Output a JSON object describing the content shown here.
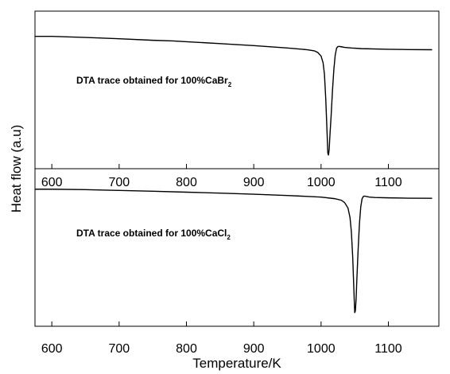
{
  "chart_data": [
    {
      "type": "line",
      "panel": "top",
      "xlabel": "",
      "ylabel": "Heat flow (a.u)",
      "xlim": [
        575,
        1175
      ],
      "xticks": [
        600,
        700,
        800,
        900,
        1000,
        1100
      ],
      "xticklabels": [
        "600",
        "700",
        "800",
        "900",
        "1000",
        "1100"
      ],
      "annotation": {
        "text": "DTA trace obtained for 100%CaBr",
        "subscript": "2"
      },
      "series": [
        {
          "x": [
            575,
            600,
            650,
            700,
            750,
            780,
            800,
            850,
            900,
            950,
            980,
            990,
            995,
            1000,
            1003,
            1005,
            1007,
            1009,
            1010,
            1011,
            1012,
            1013,
            1015,
            1017,
            1019,
            1021,
            1023,
            1025,
            1027,
            1030,
            1035,
            1045,
            1060,
            1100,
            1130,
            1165
          ],
          "y": [
            0.84,
            0.84,
            0.833,
            0.825,
            0.815,
            0.811,
            0.806,
            0.794,
            0.781,
            0.766,
            0.755,
            0.748,
            0.738,
            0.715,
            0.672,
            0.6,
            0.44,
            0.22,
            0.1,
            0.085,
            0.12,
            0.2,
            0.34,
            0.5,
            0.63,
            0.72,
            0.765,
            0.775,
            0.776,
            0.774,
            0.77,
            0.766,
            0.762,
            0.758,
            0.756,
            0.755
          ]
        }
      ]
    },
    {
      "type": "line",
      "panel": "bottom",
      "xlabel": "Temperature/K",
      "ylabel": "Heat flow (a.u)",
      "xlim": [
        575,
        1175
      ],
      "xticks": [
        600,
        700,
        800,
        900,
        1000,
        1100
      ],
      "xticklabels": [
        "600",
        "700",
        "800",
        "900",
        "1000",
        "1100"
      ],
      "annotation": {
        "text": "DTA trace obtained for 100%CaCl",
        "subscript": "2"
      },
      "series": [
        {
          "x": [
            575,
            600,
            650,
            700,
            750,
            800,
            850,
            900,
            950,
            1000,
            1020,
            1030,
            1035,
            1040,
            1043,
            1045,
            1047,
            1049,
            1050,
            1051,
            1052,
            1053,
            1055,
            1057,
            1059,
            1061,
            1063,
            1065,
            1068,
            1072,
            1080,
            1100,
            1130,
            1165
          ],
          "y": [
            0.87,
            0.87,
            0.867,
            0.862,
            0.857,
            0.851,
            0.845,
            0.838,
            0.83,
            0.82,
            0.81,
            0.8,
            0.785,
            0.75,
            0.69,
            0.6,
            0.44,
            0.2,
            0.085,
            0.1,
            0.17,
            0.28,
            0.48,
            0.65,
            0.76,
            0.81,
            0.825,
            0.826,
            0.823,
            0.82,
            0.817,
            0.815,
            0.813,
            0.812
          ]
        }
      ]
    }
  ]
}
